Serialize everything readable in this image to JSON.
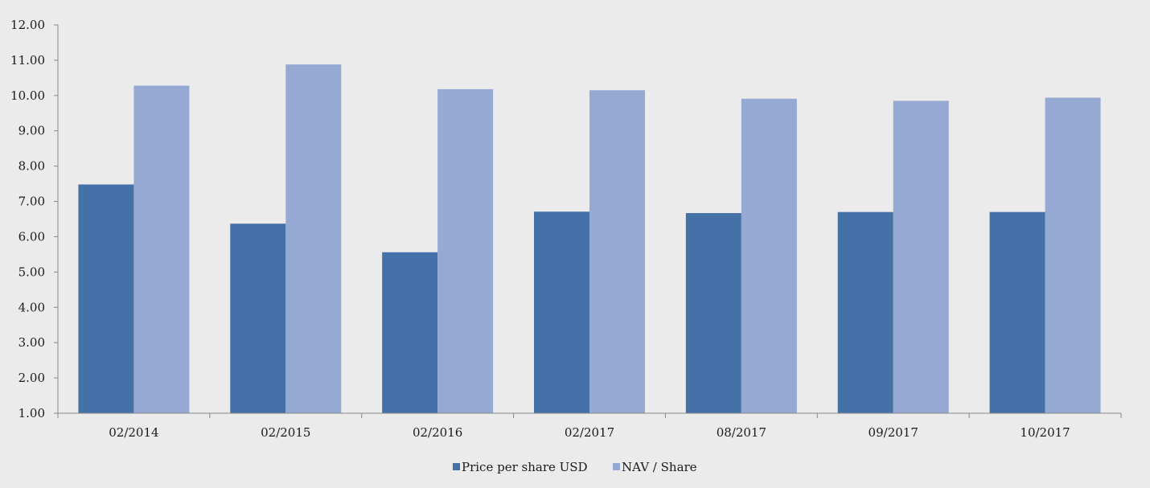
{
  "chart_data": {
    "type": "bar",
    "categories": [
      "02/2014",
      "02/2015",
      "02/2016",
      "02/2017",
      "08/2017",
      "09/2017",
      "10/2017"
    ],
    "series": [
      {
        "name": "Price per share USD",
        "color": "#4472a8",
        "values": [
          7.48,
          6.37,
          5.56,
          6.71,
          6.67,
          6.7,
          6.7
        ]
      },
      {
        "name": "NAV / Share",
        "color": "#95a9d2",
        "values": [
          10.28,
          10.88,
          10.18,
          10.15,
          9.91,
          9.85,
          9.94
        ]
      }
    ],
    "ylim": [
      1,
      12
    ],
    "yticks": [
      "1.00",
      "2.00",
      "3.00",
      "4.00",
      "5.00",
      "6.00",
      "7.00",
      "8.00",
      "9.00",
      "10.00",
      "11.00",
      "12.00"
    ],
    "legend_position": "bottom",
    "grid": false,
    "title": "",
    "xlabel": "",
    "ylabel": ""
  }
}
